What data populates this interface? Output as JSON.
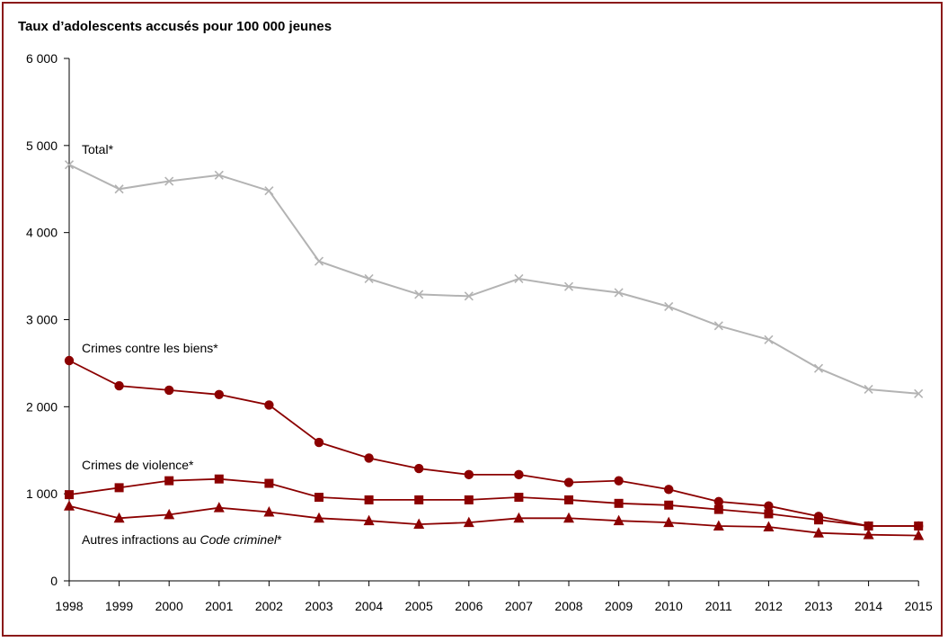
{
  "chart_data": {
    "type": "line",
    "title": "Taux d’adolescents accusés pour 100 000 jeunes",
    "xlabel": "",
    "ylabel": "",
    "ylim": [
      0,
      6000
    ],
    "yticks": [
      0,
      1000,
      2000,
      3000,
      4000,
      5000,
      6000
    ],
    "ytick_labels": [
      "0",
      "1 000",
      "2 000",
      "3 000",
      "4 000",
      "5 000",
      "6 000"
    ],
    "grid": false,
    "legend": "none",
    "x": [
      "1998",
      "1999",
      "2000",
      "2001",
      "2002",
      "2003",
      "2004",
      "2005",
      "2006",
      "2007",
      "2008",
      "2009",
      "2010",
      "2011",
      "2012",
      "2013",
      "2014",
      "2015"
    ],
    "series": [
      {
        "name": "Total*",
        "marker": "x",
        "color": "#b3b3b3",
        "label_parts": [
          {
            "text": "Total*",
            "italic": false
          }
        ],
        "values": [
          4780,
          4500,
          4590,
          4660,
          4480,
          3670,
          3470,
          3290,
          3270,
          3470,
          3380,
          3310,
          3150,
          2930,
          2770,
          2440,
          2200,
          2150
        ]
      },
      {
        "name": "Crimes contre les biens*",
        "marker": "circle",
        "color": "#8b0000",
        "label_parts": [
          {
            "text": "Crimes contre les biens*",
            "italic": false
          }
        ],
        "values": [
          2530,
          2240,
          2190,
          2140,
          2020,
          1590,
          1410,
          1290,
          1220,
          1220,
          1130,
          1150,
          1050,
          910,
          860,
          740,
          630,
          630
        ]
      },
      {
        "name": "Crimes de violence*",
        "marker": "square",
        "color": "#8b0000",
        "label_parts": [
          {
            "text": "Crimes de violence*",
            "italic": false
          }
        ],
        "values": [
          990,
          1070,
          1150,
          1170,
          1120,
          960,
          930,
          930,
          930,
          960,
          930,
          890,
          870,
          820,
          770,
          700,
          630,
          630
        ]
      },
      {
        "name": "Autres infractions au Code criminel*",
        "marker": "triangle",
        "color": "#8b0000",
        "label_parts": [
          {
            "text": "Autres infractions au ",
            "italic": false
          },
          {
            "text": "Code criminel",
            "italic": true
          },
          {
            "text": "*",
            "italic": false
          }
        ],
        "values": [
          860,
          720,
          760,
          840,
          790,
          720,
          690,
          650,
          670,
          720,
          720,
          690,
          670,
          630,
          620,
          550,
          530,
          520
        ]
      }
    ]
  }
}
